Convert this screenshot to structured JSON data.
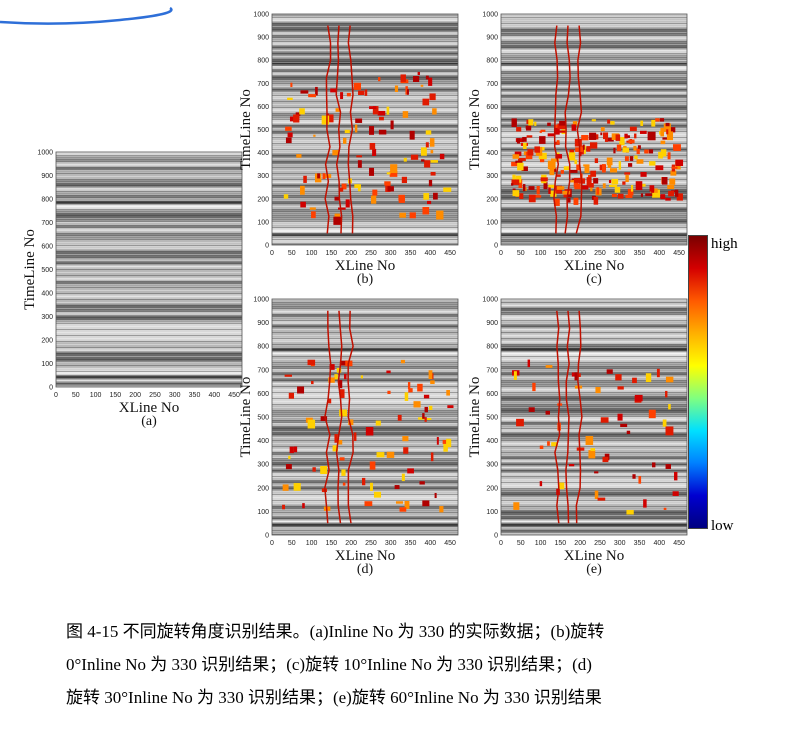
{
  "figure": {
    "panels": [
      {
        "id": "a",
        "sublabel": "(a)",
        "ylabel": "TimeLine No",
        "xlabel": "XLine No",
        "attribute_overlay": "none"
      },
      {
        "id": "b",
        "sublabel": "(b)",
        "ylabel": "TimeLine No",
        "xlabel": "XLine No",
        "attribute_overlay": "dense-upper"
      },
      {
        "id": "c",
        "sublabel": "(c)",
        "ylabel": "TimeLine No",
        "xlabel": "XLine No",
        "attribute_overlay": "dense-middle"
      },
      {
        "id": "d",
        "sublabel": "(d)",
        "ylabel": "TimeLine No",
        "xlabel": "XLine No",
        "attribute_overlay": "medium"
      },
      {
        "id": "e",
        "sublabel": "(e)",
        "ylabel": "TimeLine No",
        "xlabel": "XLine No",
        "attribute_overlay": "sparse"
      }
    ],
    "y_ticks": [
      "0",
      "100",
      "200",
      "300",
      "400",
      "500",
      "600",
      "700",
      "800",
      "900",
      "1000"
    ],
    "x_ticks": [
      "0",
      "50",
      "100",
      "150",
      "200",
      "250",
      "300",
      "350",
      "400",
      "450"
    ],
    "colorbar": {
      "high_label": "high",
      "low_label": "low",
      "colors": [
        "#7a0000",
        "#d40000",
        "#ff5a00",
        "#ffb000",
        "#ffff00",
        "#80ff80",
        "#00e0ff",
        "#0080ff",
        "#0000d0",
        "#000080"
      ]
    },
    "seismic_colors": {
      "background": "#9a9a9a",
      "dark": "#2a2a2a",
      "light": "#f2f2f2"
    }
  },
  "caption": {
    "line1": "图 4-15 不同旋转角度识别结果。(a)Inline No 为 330 的实际数据；(b)旋转",
    "line2": "0°Inline No 为 330 识别结果；(c)旋转 10°Inline No 为 330 识别结果；(d)",
    "line3": "旋转 30°Inline No 为 330 识别结果；(e)旋转 60°Inline No 为 330 识别结果"
  }
}
